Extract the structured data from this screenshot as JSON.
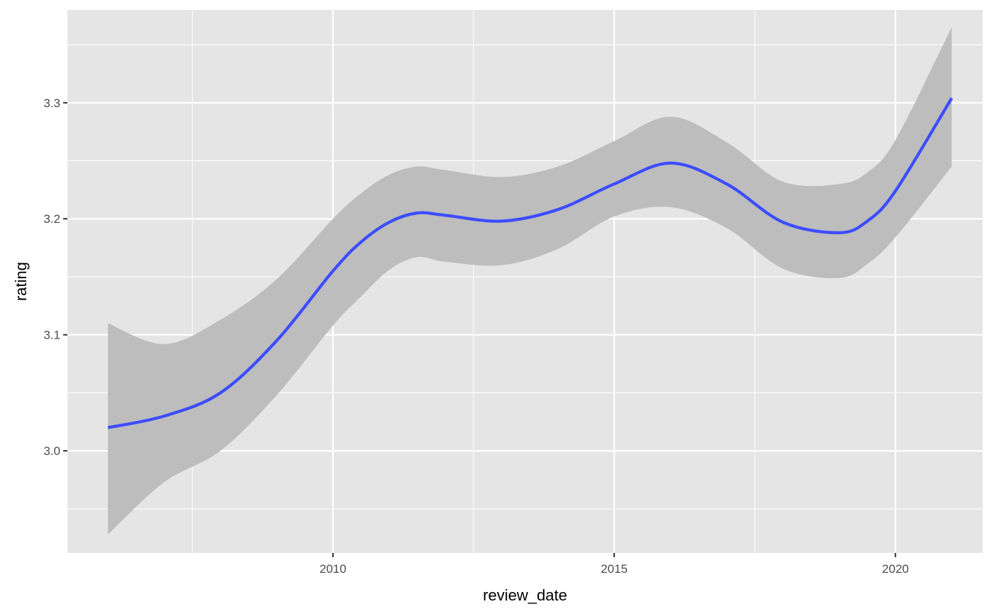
{
  "chart_data": {
    "type": "line",
    "title": "",
    "xlabel": "review_date",
    "ylabel": "rating",
    "xlim": [
      2005.28,
      2021.55
    ],
    "ylim": [
      2.912,
      3.38
    ],
    "x_ticks": [
      2010,
      2015,
      2020
    ],
    "y_ticks": [
      3.0,
      3.1,
      3.2,
      3.3
    ],
    "grid": true,
    "legend": "none",
    "colors": {
      "panel": "#e5e5e5",
      "grid": "#ffffff",
      "line": "#3d4dff",
      "band": "#bdbdbd"
    },
    "series": [
      {
        "smooth_with_ci": true,
        "x": [
          2006.0,
          2007.0,
          2008.0,
          2009.0,
          2010.0,
          2010.5,
          2011.0,
          2011.5,
          2012.0,
          2013.0,
          2014.0,
          2015.0,
          2016.0,
          2017.0,
          2018.0,
          2019.0,
          2019.5,
          2020.0,
          2021.0
        ],
        "y": [
          3.02,
          3.03,
          3.05,
          3.095,
          3.155,
          3.18,
          3.197,
          3.205,
          3.203,
          3.198,
          3.208,
          3.23,
          3.248,
          3.23,
          3.197,
          3.188,
          3.198,
          3.224,
          3.304
        ],
        "lower": [
          2.928,
          2.973,
          3.0,
          3.048,
          3.108,
          3.133,
          3.156,
          3.167,
          3.163,
          3.16,
          3.174,
          3.202,
          3.21,
          3.192,
          3.157,
          3.149,
          3.161,
          3.184,
          3.245
        ],
        "upper": [
          3.11,
          3.092,
          3.113,
          3.148,
          3.2,
          3.222,
          3.238,
          3.245,
          3.242,
          3.236,
          3.245,
          3.267,
          3.288,
          3.266,
          3.232,
          3.23,
          3.24,
          3.268,
          3.365
        ]
      }
    ]
  }
}
